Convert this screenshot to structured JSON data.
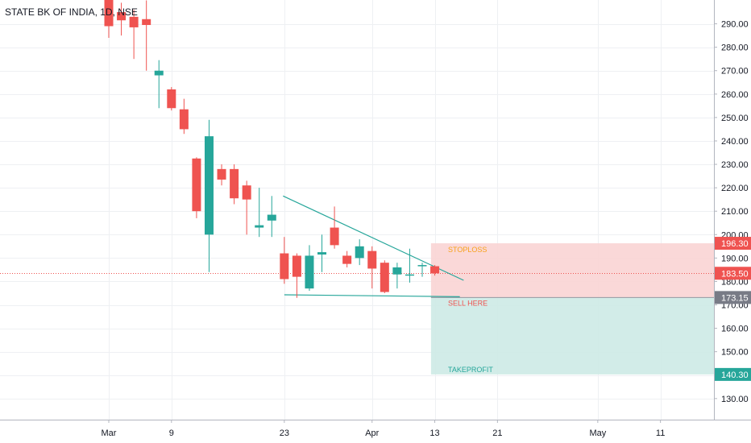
{
  "header": {
    "title": "STATE BK OF INDIA, 1D, NSE"
  },
  "chart_data": {
    "type": "candlestick",
    "title": "STATE BK OF INDIA, 1D, NSE",
    "ylim": [
      121,
      300
    ],
    "grid": true,
    "colors": {
      "up": "#26a69a",
      "down": "#ef5350",
      "grid": "#eef0f3",
      "trendline": "#26a69a",
      "stop_zone": "#fad4d4",
      "target_zone": "#cdeae6",
      "price_line": "#ef5350",
      "stop_tag": "#ef5350",
      "target_tag": "#26a69a",
      "entry_tag": "#787b86"
    },
    "y_ticks": [
      "130.00",
      "140.00",
      "150.00",
      "160.00",
      "170.00",
      "180.00",
      "190.00",
      "200.00",
      "210.00",
      "220.00",
      "230.00",
      "240.00",
      "250.00",
      "260.00",
      "270.00",
      "280.00",
      "290.00"
    ],
    "x_ticks": [
      {
        "label": "Mar",
        "slot": 0
      },
      {
        "label": "9",
        "slot": 5
      },
      {
        "label": "23",
        "slot": 14
      },
      {
        "label": "Apr",
        "slot": 21
      },
      {
        "label": "13",
        "slot": 26
      },
      {
        "label": "21",
        "slot": 31
      },
      {
        "label": "May",
        "slot": 39
      },
      {
        "label": "11",
        "slot": 44
      }
    ],
    "candles": [
      {
        "slot": 0,
        "o": 303.0,
        "h": 306.0,
        "l": 284.0,
        "c": 289.0
      },
      {
        "slot": 1,
        "o": 295.0,
        "h": 299.0,
        "l": 285.0,
        "c": 291.5
      },
      {
        "slot": 2,
        "o": 293.0,
        "h": 296.0,
        "l": 275.0,
        "c": 288.5
      },
      {
        "slot": 3,
        "o": 292.0,
        "h": 300.0,
        "l": 270.0,
        "c": 289.5
      },
      {
        "slot": 4,
        "o": 268.0,
        "h": 274.5,
        "l": 254.0,
        "c": 270.0
      },
      {
        "slot": 5,
        "o": 262.0,
        "h": 263.0,
        "l": 253.0,
        "c": 254.0
      },
      {
        "slot": 6,
        "o": 253.5,
        "h": 258.0,
        "l": 243.0,
        "c": 245.0
      },
      {
        "slot": 7,
        "o": 232.5,
        "h": 233.0,
        "l": 207.0,
        "c": 210.0
      },
      {
        "slot": 8,
        "o": 200.0,
        "h": 249.0,
        "l": 184.0,
        "c": 242.0
      },
      {
        "slot": 9,
        "o": 228.0,
        "h": 230.0,
        "l": 221.0,
        "c": 223.5
      },
      {
        "slot": 10,
        "o": 228.0,
        "h": 230.0,
        "l": 213.0,
        "c": 215.5
      },
      {
        "slot": 11,
        "o": 221.0,
        "h": 223.0,
        "l": 200.0,
        "c": 215.0
      },
      {
        "slot": 12,
        "o": 203.0,
        "h": 220.0,
        "l": 199.0,
        "c": 204.0
      },
      {
        "slot": 13,
        "o": 206.0,
        "h": 216.5,
        "l": 199.0,
        "c": 208.5
      },
      {
        "slot": 14,
        "o": 192.0,
        "h": 199.0,
        "l": 179.0,
        "c": 181.0
      },
      {
        "slot": 15,
        "o": 191.0,
        "h": 192.0,
        "l": 173.0,
        "c": 182.0
      },
      {
        "slot": 16,
        "o": 177.0,
        "h": 195.5,
        "l": 176.0,
        "c": 191.0
      },
      {
        "slot": 17,
        "o": 191.5,
        "h": 200.0,
        "l": 184.0,
        "c": 192.5
      },
      {
        "slot": 18,
        "o": 203.0,
        "h": 212.0,
        "l": 194.0,
        "c": 195.5
      },
      {
        "slot": 19,
        "o": 191.0,
        "h": 193.0,
        "l": 186.0,
        "c": 187.5
      },
      {
        "slot": 20,
        "o": 190.0,
        "h": 198.0,
        "l": 187.0,
        "c": 195.0
      },
      {
        "slot": 21,
        "o": 193.0,
        "h": 195.0,
        "l": 177.0,
        "c": 185.5
      },
      {
        "slot": 22,
        "o": 188.0,
        "h": 189.0,
        "l": 175.0,
        "c": 175.5
      },
      {
        "slot": 23,
        "o": 183.0,
        "h": 188.0,
        "l": 177.0,
        "c": 186.0
      },
      {
        "slot": 24,
        "o": 182.5,
        "h": 194.0,
        "l": 179.5,
        "c": 183.0
      },
      {
        "slot": 25,
        "o": 187.0,
        "h": 188.0,
        "l": 182.0,
        "c": 187.0
      },
      {
        "slot": 26,
        "o": 186.5,
        "h": 187.0,
        "l": 182.5,
        "c": 183.5
      }
    ],
    "trendlines": [
      {
        "slot1": 13.9,
        "y1": 216.5,
        "slot2": 28.3,
        "y2": 180.5
      },
      {
        "slot1": 14.0,
        "y1": 174.3,
        "slot2": 28.0,
        "y2": 173.5
      }
    ],
    "position": {
      "type": "short",
      "start_slot": 25.7,
      "entry": 173.15,
      "stop": 196.3,
      "target": 140.3,
      "stop_label": "STOPLOSS",
      "entry_label": "SELL HERE",
      "target_label": "TAKEPROFIT"
    },
    "current_price": 183.5,
    "price_tags": [
      {
        "value": 196.3,
        "label": "196.30",
        "color": "#ef5350"
      },
      {
        "value": 183.5,
        "label": "183.50",
        "color": "#ef5350"
      },
      {
        "value": 173.15,
        "label": "173.15",
        "color": "#787b86"
      },
      {
        "value": 140.3,
        "label": "140.30",
        "color": "#26a69a"
      }
    ]
  }
}
